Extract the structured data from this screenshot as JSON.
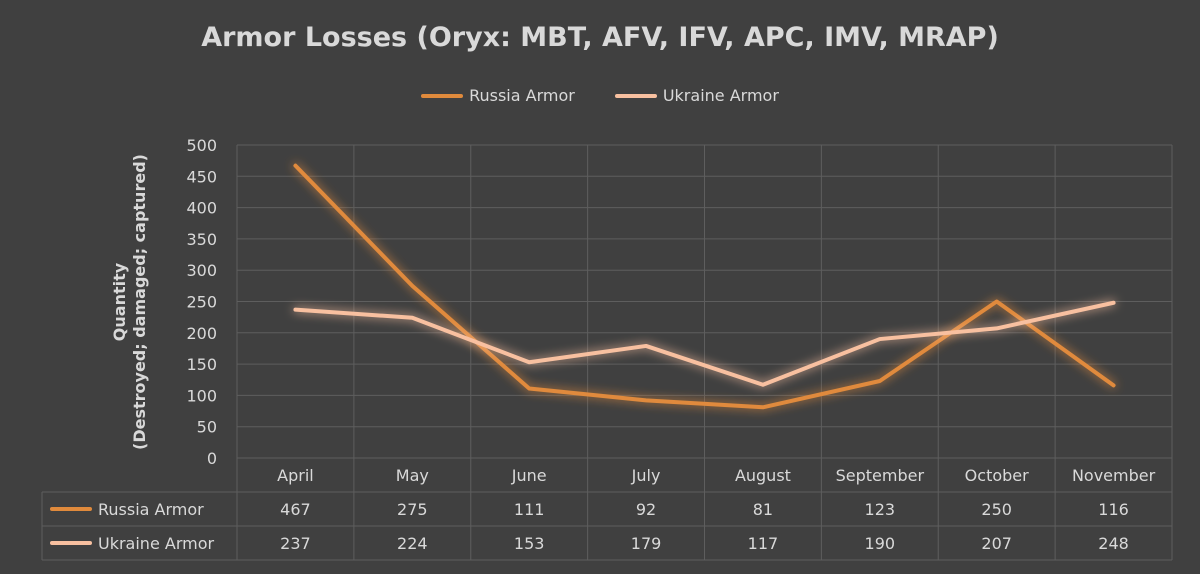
{
  "chart_data": {
    "type": "line",
    "title": "Armor Losses (Oryx: MBT, AFV, IFV, APC, IMV, MRAP)",
    "ylabel_lines": [
      "Quantity",
      "(Destroyed; damaged; captured)"
    ],
    "xlabel": "",
    "ylim": [
      0,
      500
    ],
    "yticks": [
      0,
      50,
      100,
      150,
      200,
      250,
      300,
      350,
      400,
      450,
      500
    ],
    "categories": [
      "April",
      "May",
      "June",
      "July",
      "August",
      "September",
      "October",
      "November"
    ],
    "series": [
      {
        "name": "Russia Armor",
        "color": "#e08a3c",
        "values": [
          467,
          275,
          111,
          92,
          81,
          123,
          250,
          116
        ]
      },
      {
        "name": "Ukraine Armor",
        "color": "#f8c0a0",
        "values": [
          237,
          224,
          153,
          179,
          117,
          190,
          207,
          248
        ]
      }
    ],
    "legend_position": "top-center",
    "grid": true,
    "data_table": true
  }
}
